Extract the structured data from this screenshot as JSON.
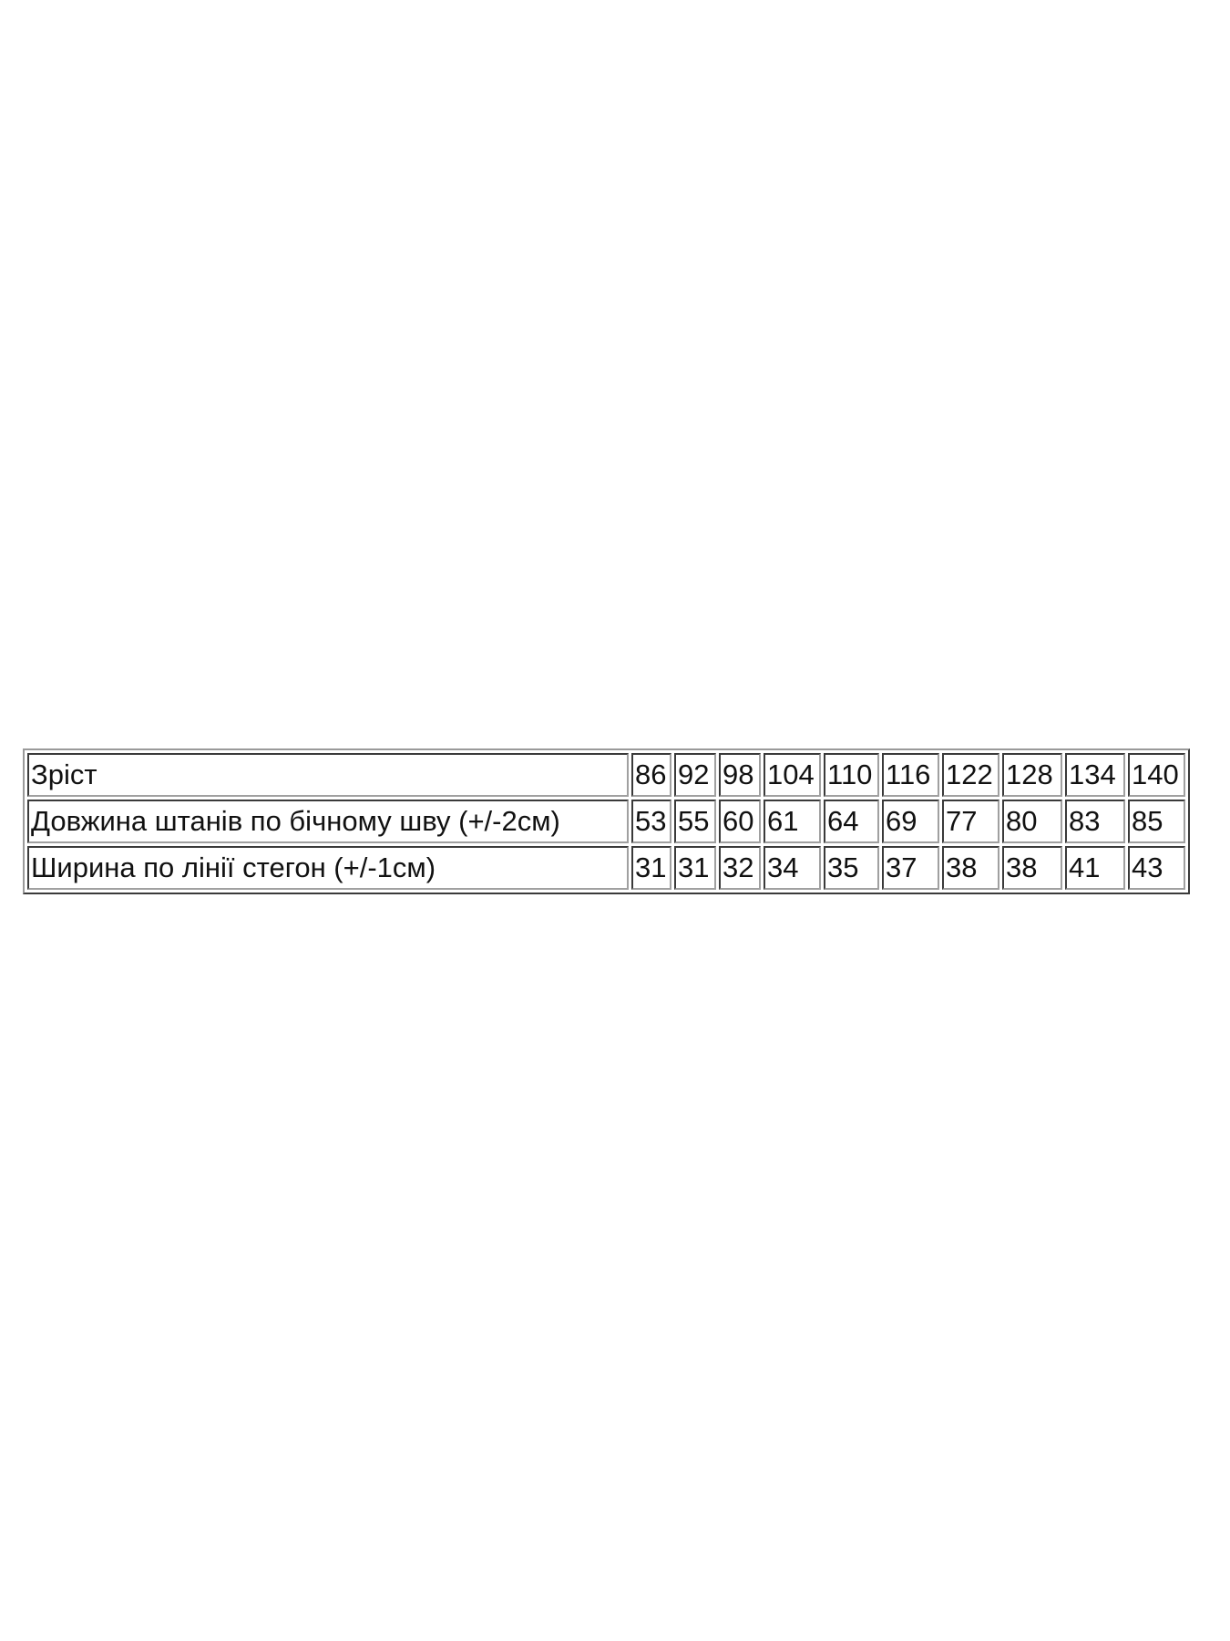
{
  "table": {
    "rows": [
      {
        "label": "Зріст",
        "values": [
          "86",
          "92",
          "98",
          "104",
          "110",
          "116",
          "122",
          "128",
          "134",
          "140"
        ]
      },
      {
        "label": "Довжина штанів по бічному шву (+/-2см)",
        "values": [
          "53",
          "55",
          "60",
          "61",
          "64",
          "69",
          "77",
          "80",
          "83",
          "85"
        ]
      },
      {
        "label": "Ширина по лінії стегон (+/-1см)",
        "values": [
          "31",
          "31",
          "32",
          "34",
          "35",
          "37",
          "38",
          "38",
          "41",
          "43"
        ]
      }
    ]
  }
}
